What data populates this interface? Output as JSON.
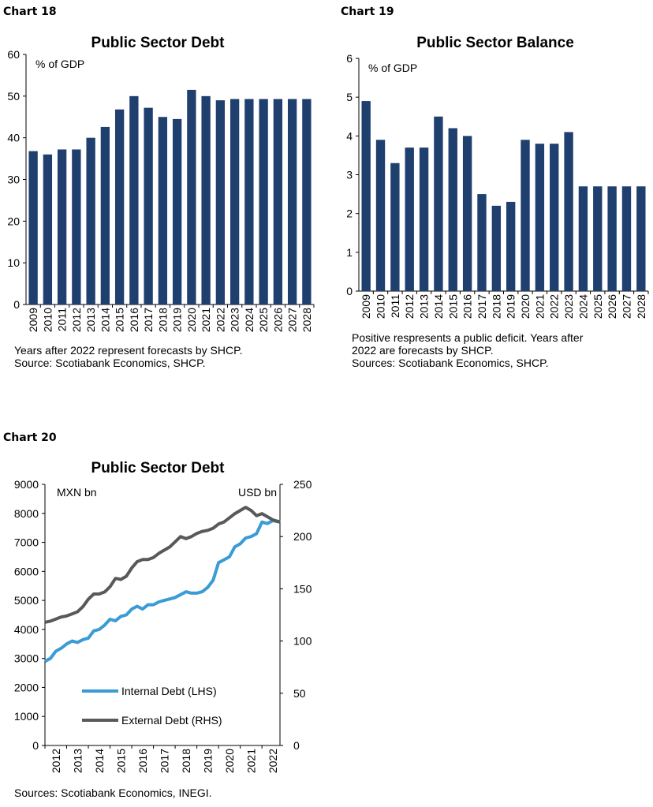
{
  "charts": [
    {
      "label": "Chart 18",
      "notes": "Years after 2022 represent forecasts by SHCP.\nSource: Scotiabank Economics, SHCP."
    },
    {
      "label": "Chart 19",
      "notes": "Positive respresents a public deficit. Years after\n2022 are forecasts by SHCP.\nSources: Scotiabank Economics, SHCP."
    },
    {
      "label": "Chart 20",
      "notes": "Sources: Scotiabank Economics, INEGI."
    }
  ],
  "chart_data": [
    {
      "type": "bar",
      "title": "Public Sector Debt",
      "ylabel": "% of GDP",
      "categories": [
        "2009",
        "2010",
        "2011",
        "2012",
        "2013",
        "2014",
        "2015",
        "2016",
        "2017",
        "2018",
        "2019",
        "2020",
        "2021",
        "2022",
        "2023",
        "2024",
        "2025",
        "2026",
        "2027",
        "2028"
      ],
      "values": [
        36.8,
        36.0,
        37.2,
        37.2,
        40.0,
        42.6,
        46.8,
        50.0,
        47.2,
        45.0,
        44.5,
        51.5,
        50.0,
        49.0,
        49.3,
        49.3,
        49.3,
        49.3,
        49.3,
        49.3
      ],
      "ylim": [
        0,
        60
      ],
      "yticks": [
        0,
        10,
        20,
        30,
        40,
        50,
        60
      ],
      "color": "#1f3f6e",
      "grid": false
    },
    {
      "type": "bar",
      "title": "Public Sector Balance",
      "ylabel": "% of GDP",
      "categories": [
        "2009",
        "2010",
        "2011",
        "2012",
        "2013",
        "2014",
        "2015",
        "2016",
        "2017",
        "2018",
        "2019",
        "2020",
        "2021",
        "2022",
        "2023",
        "2024",
        "2025",
        "2026",
        "2027",
        "2028"
      ],
      "values": [
        4.9,
        3.9,
        3.3,
        3.7,
        3.7,
        4.5,
        4.2,
        4.0,
        2.5,
        2.2,
        2.3,
        3.9,
        3.8,
        3.8,
        4.1,
        2.7,
        2.7,
        2.7,
        2.7,
        2.7
      ],
      "ylim": [
        0,
        6
      ],
      "yticks": [
        0,
        1,
        2,
        3,
        4,
        5,
        6
      ],
      "color": "#1f3f6e",
      "grid": false
    },
    {
      "type": "line",
      "title": "Public Sector Debt",
      "ylabel_left": "MXN bn",
      "ylabel_right": "USD bn",
      "x_ticks": [
        "2012",
        "2013",
        "2014",
        "2015",
        "2016",
        "2017",
        "2018",
        "2019",
        "2020",
        "2021",
        "2022"
      ],
      "xlim": [
        2012.0,
        2022.83
      ],
      "ylim_left": [
        0,
        9000
      ],
      "yticks_left": [
        0,
        1000,
        2000,
        3000,
        4000,
        5000,
        6000,
        7000,
        8000,
        9000
      ],
      "ylim_right": [
        0,
        250
      ],
      "yticks_right": [
        0,
        50,
        100,
        150,
        200,
        250
      ],
      "legend_position": "bottom-left",
      "grid": false,
      "series": [
        {
          "name": "Internal Debt (LHS)",
          "axis": "left",
          "color": "#3a9bd5",
          "x": [
            2012.0,
            2012.25,
            2012.5,
            2012.75,
            2013.0,
            2013.25,
            2013.5,
            2013.75,
            2014.0,
            2014.25,
            2014.5,
            2014.75,
            2015.0,
            2015.25,
            2015.5,
            2015.75,
            2016.0,
            2016.25,
            2016.5,
            2016.75,
            2017.0,
            2017.25,
            2017.5,
            2017.75,
            2018.0,
            2018.25,
            2018.5,
            2018.75,
            2019.0,
            2019.25,
            2019.5,
            2019.75,
            2020.0,
            2020.25,
            2020.5,
            2020.75,
            2021.0,
            2021.25,
            2021.5,
            2021.75,
            2022.0,
            2022.25,
            2022.5,
            2022.83
          ],
          "values": [
            2900,
            3000,
            3250,
            3350,
            3500,
            3600,
            3550,
            3650,
            3700,
            3950,
            4000,
            4150,
            4350,
            4300,
            4450,
            4500,
            4700,
            4800,
            4700,
            4850,
            4850,
            4950,
            5000,
            5050,
            5100,
            5200,
            5300,
            5250,
            5250,
            5300,
            5450,
            5700,
            6300,
            6400,
            6500,
            6850,
            6950,
            7150,
            7200,
            7300,
            7700,
            7650,
            7750,
            7700
          ]
        },
        {
          "name": "External Debt (RHS)",
          "axis": "right",
          "color": "#595959",
          "x": [
            2012.0,
            2012.25,
            2012.5,
            2012.75,
            2013.0,
            2013.25,
            2013.5,
            2013.75,
            2014.0,
            2014.25,
            2014.5,
            2014.75,
            2015.0,
            2015.25,
            2015.5,
            2015.75,
            2016.0,
            2016.25,
            2016.5,
            2016.75,
            2017.0,
            2017.25,
            2017.5,
            2017.75,
            2018.0,
            2018.25,
            2018.5,
            2018.75,
            2019.0,
            2019.25,
            2019.5,
            2019.75,
            2020.0,
            2020.25,
            2020.5,
            2020.75,
            2021.0,
            2021.25,
            2021.5,
            2021.75,
            2022.0,
            2022.25,
            2022.5,
            2022.83
          ],
          "values": [
            118,
            119,
            121,
            123,
            124,
            126,
            128,
            133,
            140,
            145,
            145,
            147,
            152,
            160,
            159,
            162,
            170,
            176,
            178,
            178,
            180,
            184,
            187,
            190,
            195,
            200,
            198,
            200,
            203,
            205,
            206,
            208,
            212,
            214,
            218,
            222,
            225,
            228,
            225,
            220,
            222,
            219,
            216,
            214
          ]
        }
      ]
    }
  ]
}
